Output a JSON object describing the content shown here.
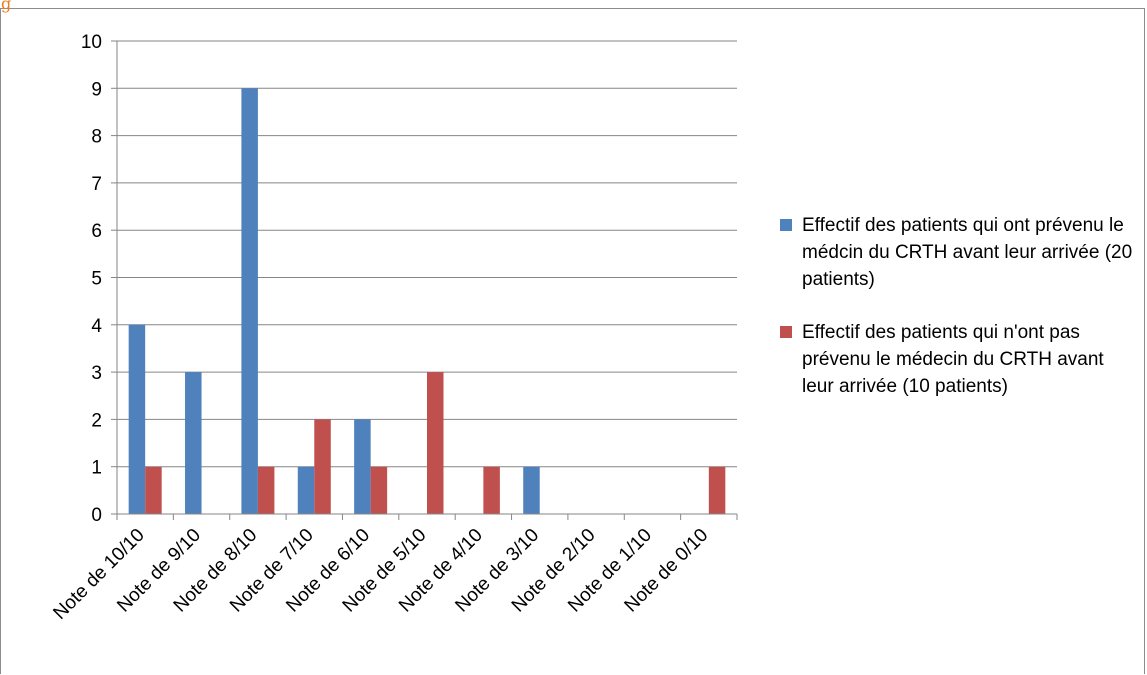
{
  "header_glyph": "g",
  "chart_data": {
    "type": "bar",
    "title": "",
    "xlabel": "",
    "ylabel": "",
    "ylim": [
      0,
      10
    ],
    "yticks": [
      0,
      1,
      2,
      3,
      4,
      5,
      6,
      7,
      8,
      9,
      10
    ],
    "grid": true,
    "legend_position": "right",
    "categories": [
      "Note de 10/10",
      "Note de 9/10",
      "Note de 8/10",
      "Note de 7/10",
      "Note de 6/10",
      "Note de 5/10",
      "Note de 4/10",
      "Note de 3/10",
      "Note de 2/10",
      "Note de 1/10",
      "Note de 0/10"
    ],
    "series": [
      {
        "name": "Effectif des patients qui ont prévenu le médcin du CRTH avant leur arrivée (20 patients)",
        "color": "#4f81bd",
        "values": [
          4,
          3,
          9,
          1,
          2,
          0,
          0,
          1,
          0,
          0,
          0
        ]
      },
      {
        "name": "Effectif des patients qui n'ont pas prévenu le médecin du CRTH avant leur arrivée (10 patients)",
        "color": "#c0504d",
        "values": [
          1,
          0,
          1,
          2,
          1,
          3,
          1,
          0,
          0,
          0,
          1
        ]
      }
    ]
  }
}
